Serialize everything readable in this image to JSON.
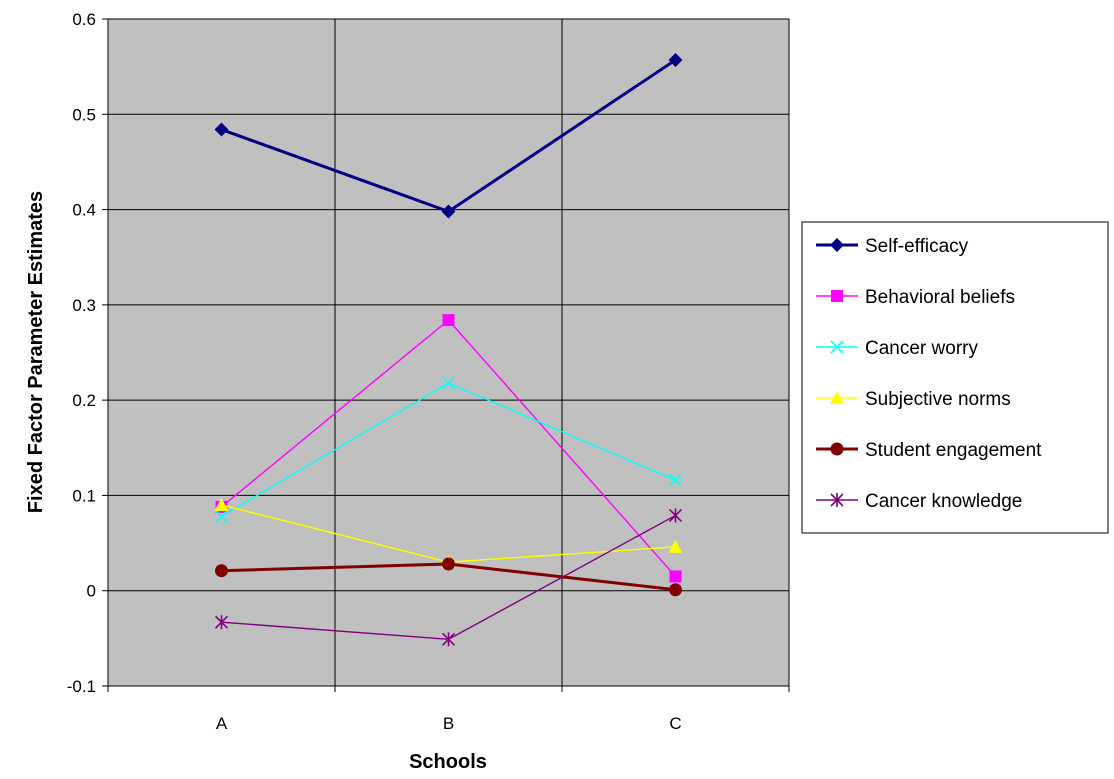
{
  "chart_data": {
    "type": "line",
    "title": "",
    "xlabel": "Schools",
    "ylabel": "Fixed Factor Parameter Estimates",
    "categories": [
      "A",
      "B",
      "C"
    ],
    "ylim": [
      -0.1,
      0.6
    ],
    "yticks": [
      -0.1,
      0,
      0.1,
      0.2,
      0.3,
      0.4,
      0.5,
      0.6
    ],
    "ytick_labels": [
      "-0.1",
      "0",
      "0.1",
      "0.2",
      "0.3",
      "0.4",
      "0.5",
      "0.6"
    ],
    "grid": true,
    "plot_background": "#c0c0c0",
    "legend_position": "right",
    "series": [
      {
        "name": "Self-efficacy",
        "values": [
          0.484,
          0.398,
          0.557
        ],
        "color": "#000080",
        "marker": "diamond",
        "thick": true
      },
      {
        "name": "Behavioral beliefs",
        "values": [
          0.088,
          0.284,
          0.015
        ],
        "color": "#ff00ff",
        "marker": "square",
        "thick": false
      },
      {
        "name": "Cancer worry",
        "values": [
          0.078,
          0.218,
          0.116
        ],
        "color": "#00ffff",
        "marker": "x",
        "thick": false
      },
      {
        "name": "Subjective norms",
        "values": [
          0.09,
          0.03,
          0.046
        ],
        "color": "#ffff00",
        "marker": "triangle",
        "thick": false
      },
      {
        "name": "Student engagement",
        "values": [
          0.021,
          0.028,
          0.001
        ],
        "color": "#800000",
        "marker": "circle",
        "thick": true
      },
      {
        "name": "Cancer knowledge",
        "values": [
          -0.033,
          -0.051,
          0.079
        ],
        "color": "#800080",
        "marker": "star",
        "thick": false
      }
    ]
  }
}
